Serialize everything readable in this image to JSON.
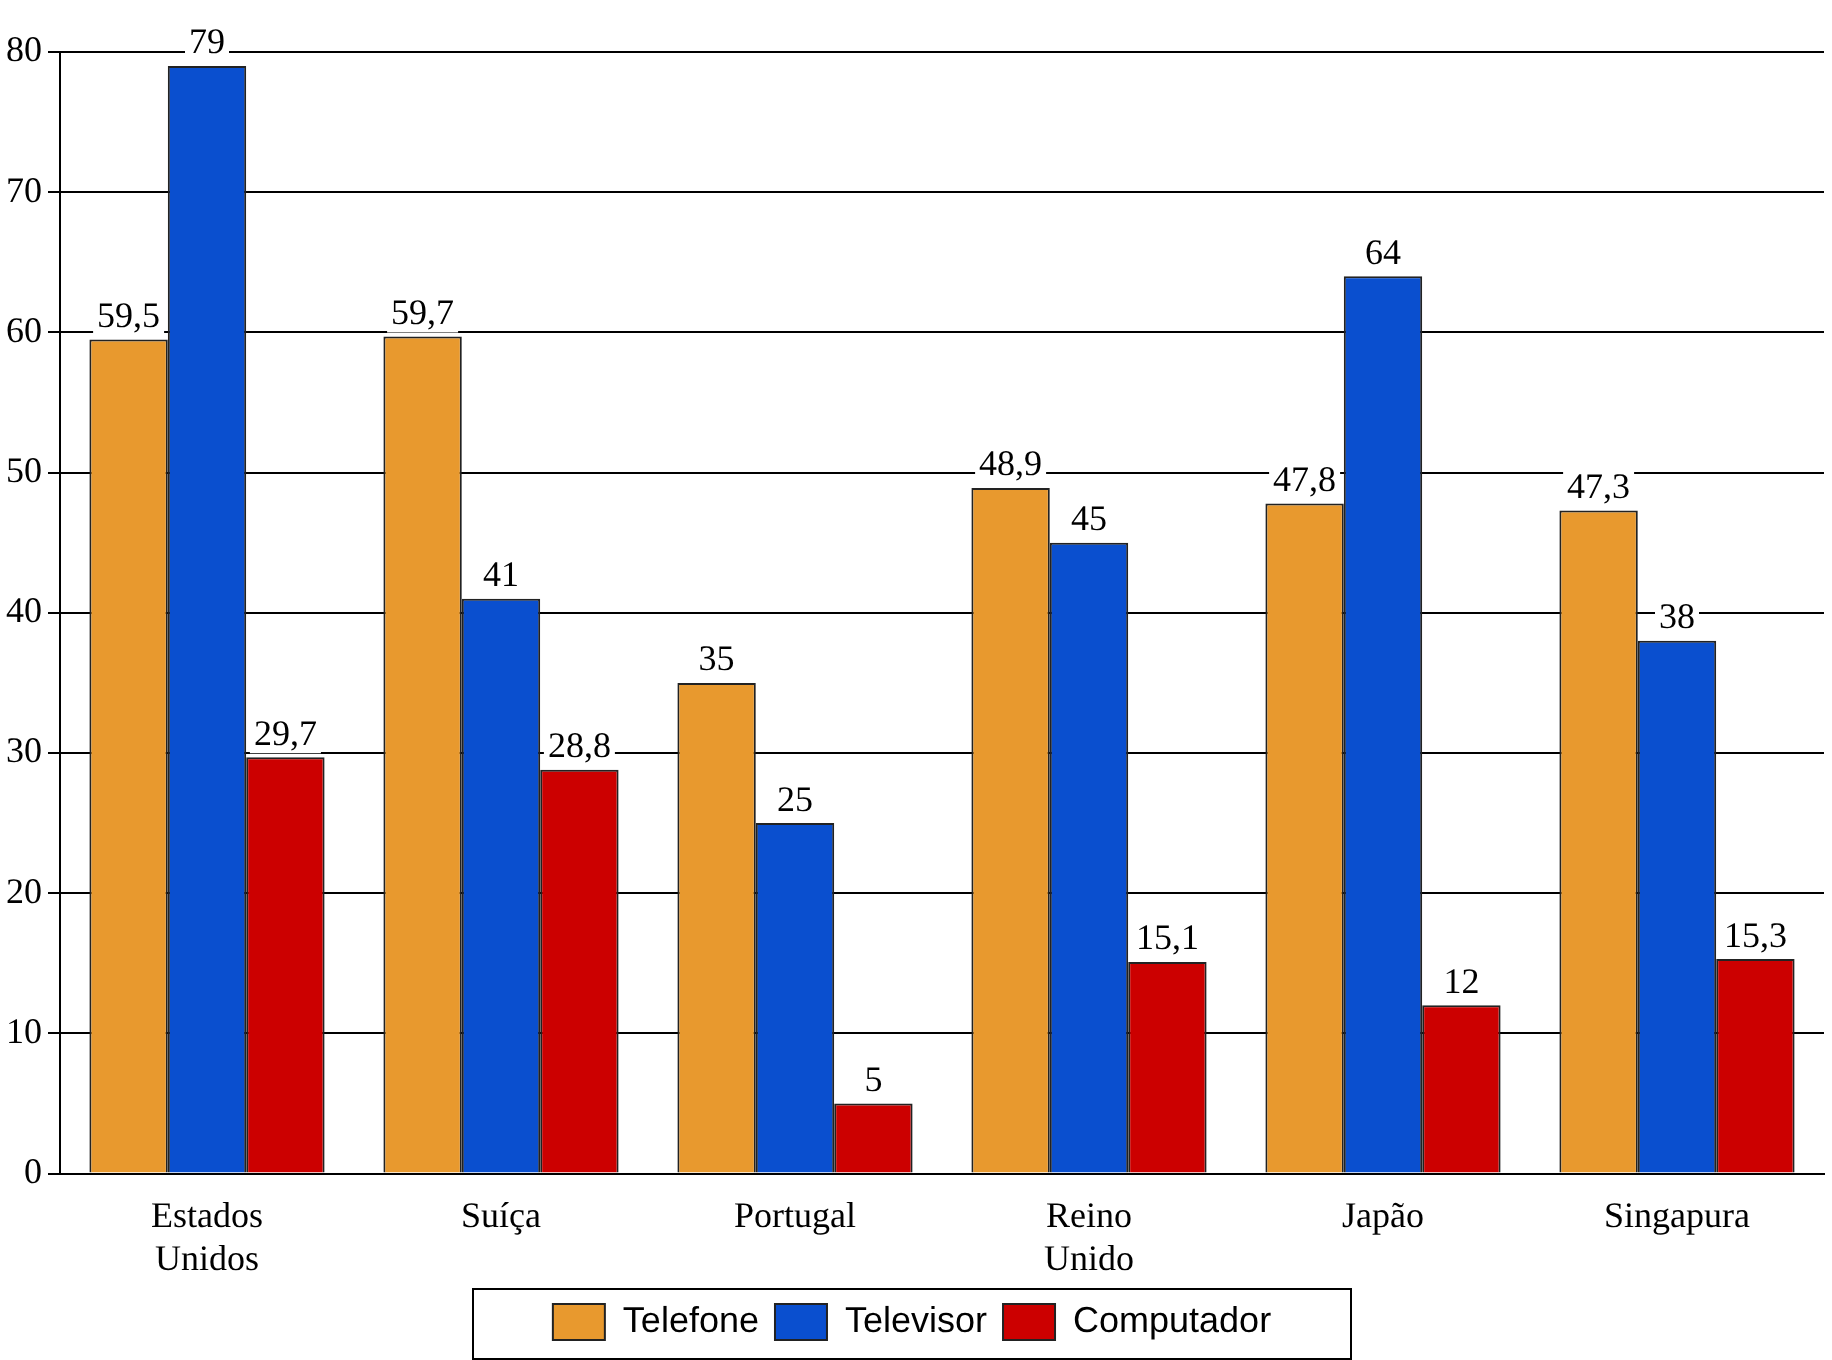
{
  "chart_data": {
    "type": "bar",
    "categories": [
      "Estados Unidos",
      "Suíça",
      "Portugal",
      "Reino Unido",
      "Japão",
      "Singapura"
    ],
    "series": [
      {
        "name": "Telefone",
        "color": "#e8992e",
        "values": [
          59.5,
          59.7,
          35,
          48.9,
          47.8,
          47.3
        ],
        "value_labels": [
          "59,5",
          "59,7",
          "35",
          "48,9",
          "47,8",
          "47,3"
        ]
      },
      {
        "name": "Televisor",
        "color": "#0a4fcf",
        "values": [
          79,
          41,
          25,
          45,
          64,
          38
        ],
        "value_labels": [
          "79",
          "41",
          "25",
          "45",
          "64",
          "38"
        ]
      },
      {
        "name": "Computador",
        "color": "#cc0000",
        "values": [
          29.7,
          28.8,
          5,
          15.1,
          12,
          15.3
        ],
        "value_labels": [
          "29,7",
          "28,8",
          "5",
          "15,1",
          "12",
          "15,3"
        ]
      }
    ],
    "ylim": [
      0,
      80
    ],
    "yticks": [
      0,
      10,
      20,
      30,
      40,
      50,
      60,
      70,
      80
    ],
    "grid": "y",
    "legend": "bottom"
  }
}
